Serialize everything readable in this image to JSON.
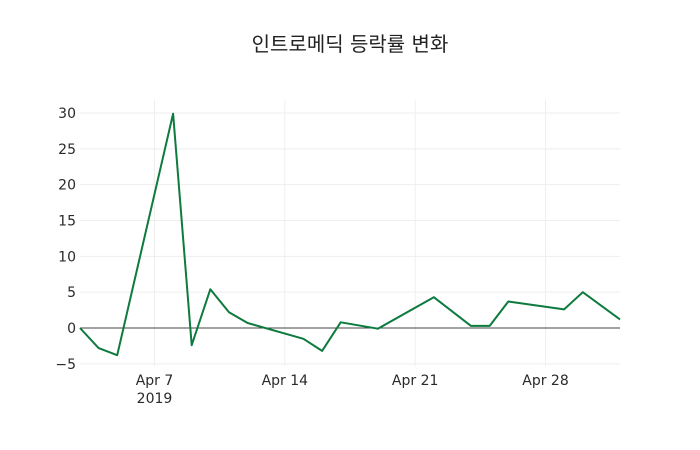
{
  "title": "인트로메딕 등락률 변화",
  "colors": {
    "line": "#0d7a3e",
    "grid": "#eeeeee",
    "zero_line": "#444444",
    "text": "#2a2a2a"
  },
  "chart_data": {
    "type": "line",
    "title": "인트로메딕 등락률 변화",
    "xlabel": "",
    "ylabel": "",
    "ylim": [
      -5.5,
      32
    ],
    "xlim": [
      "2019-04-03",
      "2019-05-02"
    ],
    "grid": true,
    "legend": null,
    "y_ticks": [
      -5,
      0,
      5,
      10,
      15,
      20,
      25,
      30
    ],
    "y_tick_labels": [
      "−5",
      "0",
      "5",
      "10",
      "15",
      "20",
      "25",
      "30"
    ],
    "x_ticks": [
      {
        "date": "2019-04-07",
        "label": "Apr 7",
        "sublabel": "2019"
      },
      {
        "date": "2019-04-14",
        "label": "Apr 14",
        "sublabel": ""
      },
      {
        "date": "2019-04-21",
        "label": "Apr 21",
        "sublabel": ""
      },
      {
        "date": "2019-04-28",
        "label": "Apr 28",
        "sublabel": ""
      }
    ],
    "series": [
      {
        "name": "등락률",
        "x": [
          "2019-04-03",
          "2019-04-04",
          "2019-04-05",
          "2019-04-08",
          "2019-04-09",
          "2019-04-10",
          "2019-04-11",
          "2019-04-12",
          "2019-04-15",
          "2019-04-16",
          "2019-04-17",
          "2019-04-19",
          "2019-04-22",
          "2019-04-24",
          "2019-04-25",
          "2019-04-26",
          "2019-04-29",
          "2019-04-30",
          "2019-05-02"
        ],
        "values": [
          0.0,
          -2.8,
          -3.8,
          29.9,
          -2.4,
          5.4,
          2.2,
          0.7,
          -1.5,
          -3.2,
          0.8,
          -0.1,
          4.3,
          0.3,
          0.3,
          3.7,
          2.6,
          5.0,
          1.2
        ]
      }
    ]
  }
}
